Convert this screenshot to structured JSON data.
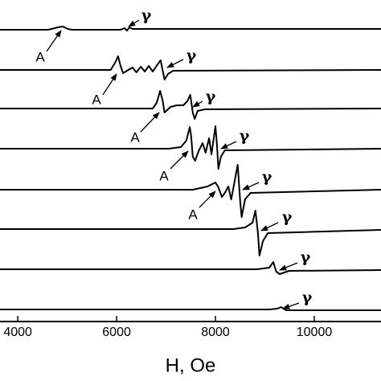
{
  "chart_data": {
    "type": "line",
    "xlabel": "H, Oe",
    "xlim": [
      3640,
      11350
    ],
    "xticks": [
      4000,
      6000,
      8000,
      10000
    ],
    "ylim": [
      0,
      8
    ],
    "series": [
      {
        "color": "#000000",
        "x": [
          3640,
          4620,
          4810,
          4910,
          5010,
          5100,
          6080,
          6160,
          6210,
          6260,
          6320,
          11350
        ],
        "values": [
          7.26,
          7.26,
          7.32,
          7.34,
          7.28,
          7.26,
          7.26,
          7.3,
          7.24,
          7.32,
          7.28,
          7.28
        ]
      },
      {
        "color": "#000000",
        "x": [
          3640,
          5880,
          5970,
          6030,
          6080,
          6130,
          6210,
          6320,
          6400,
          6490,
          6570,
          6650,
          6730,
          6830,
          6890,
          6940,
          6970,
          7040,
          7140,
          11350
        ],
        "values": [
          6.26,
          6.26,
          6.44,
          6.6,
          6.36,
          6.18,
          6.24,
          6.32,
          6.2,
          6.34,
          6.22,
          6.36,
          6.22,
          6.4,
          6.5,
          6.2,
          6.02,
          6.16,
          6.24,
          6.26
        ]
      },
      {
        "color": "#000000",
        "x": [
          3640,
          6730,
          6810,
          6880,
          6930,
          6970,
          7090,
          7220,
          7350,
          7430,
          7490,
          7540,
          7580,
          7640,
          7790,
          11350
        ],
        "values": [
          5.3,
          5.3,
          5.44,
          5.74,
          5.5,
          5.2,
          5.34,
          5.38,
          5.38,
          5.48,
          5.64,
          5.2,
          5.04,
          5.24,
          5.28,
          5.3
        ]
      },
      {
        "color": "#000000",
        "x": [
          3640,
          7050,
          7300,
          7410,
          7480,
          7510,
          7540,
          7590,
          7660,
          7740,
          7800,
          7870,
          7920,
          7970,
          8000,
          8030,
          8060,
          8110,
          8190,
          11350
        ],
        "values": [
          4.3,
          4.3,
          4.34,
          4.5,
          4.84,
          4.6,
          4.1,
          4.0,
          4.24,
          4.44,
          4.2,
          4.56,
          4.16,
          4.6,
          4.86,
          4.4,
          3.8,
          4.1,
          4.26,
          4.3
        ]
      },
      {
        "color": "#000000",
        "x": [
          3640,
          7540,
          7840,
          8000,
          8060,
          8130,
          8190,
          8260,
          8320,
          8390,
          8450,
          8500,
          8530,
          8600,
          8710,
          11350
        ],
        "values": [
          3.28,
          3.28,
          3.36,
          3.46,
          3.34,
          3.1,
          3.2,
          3.36,
          3.04,
          3.5,
          3.9,
          3.0,
          2.6,
          3.04,
          3.2,
          3.28
        ]
      },
      {
        "color": "#000000",
        "x": [
          3640,
          8360,
          8600,
          8750,
          8810,
          8860,
          8890,
          8960,
          9060,
          11350
        ],
        "values": [
          2.3,
          2.3,
          2.34,
          2.46,
          2.76,
          2.2,
          1.64,
          2.0,
          2.2,
          2.28
        ]
      },
      {
        "color": "#000000",
        "x": [
          3640,
          8840,
          9090,
          9170,
          9230,
          9300,
          9490,
          11350
        ],
        "values": [
          1.3,
          1.3,
          1.34,
          1.48,
          1.24,
          1.18,
          1.26,
          1.28
        ]
      },
      {
        "color": "#000000",
        "x": [
          3640,
          9090,
          9250,
          9330,
          9430,
          9580,
          11350
        ],
        "values": [
          0.3,
          0.3,
          0.32,
          0.36,
          0.28,
          0.28,
          0.28
        ]
      }
    ],
    "annotations": [
      "A",
      "A",
      "A",
      "A",
      "A",
      "γ",
      "γ",
      "γ",
      "γ",
      "γ",
      "γ",
      "γ",
      "γ"
    ]
  }
}
